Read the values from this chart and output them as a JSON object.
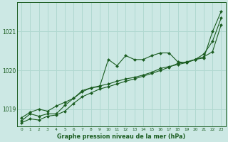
{
  "title": "Graphe pression niveau de la mer (hPa)",
  "bg_color": "#cce8e4",
  "grid_color": "#b0d8d0",
  "line_color": "#1a5c20",
  "xlim_min": -0.5,
  "xlim_max": 23.5,
  "ylim_min": 1018.55,
  "ylim_max": 1021.75,
  "yticks": [
    1019,
    1020,
    1021
  ],
  "xticks": [
    0,
    1,
    2,
    3,
    4,
    5,
    6,
    7,
    8,
    9,
    10,
    11,
    12,
    13,
    14,
    15,
    16,
    17,
    18,
    19,
    20,
    21,
    22,
    23
  ],
  "series1": [
    1018.7,
    1018.88,
    1018.82,
    1018.88,
    1018.88,
    1019.1,
    1019.28,
    1019.45,
    1019.55,
    1019.6,
    1019.65,
    1019.72,
    1019.78,
    1019.82,
    1019.88,
    1019.95,
    1020.05,
    1020.1,
    1020.15,
    1020.2,
    1020.28,
    1020.42,
    1020.75,
    1021.35
  ],
  "series2": [
    1018.78,
    1018.92,
    1019.0,
    1018.95,
    1019.08,
    1019.18,
    1019.28,
    1019.48,
    1019.55,
    1019.58,
    1020.28,
    1020.12,
    1020.38,
    1020.28,
    1020.28,
    1020.38,
    1020.45,
    1020.45,
    1020.22,
    1020.2,
    1020.28,
    1020.32,
    1021.0,
    1021.52
  ],
  "series3": [
    1018.65,
    1018.75,
    1018.72,
    1018.82,
    1018.85,
    1018.95,
    1019.15,
    1019.32,
    1019.42,
    1019.52,
    1019.58,
    1019.65,
    1019.72,
    1019.78,
    1019.85,
    1019.92,
    1020.0,
    1020.08,
    1020.18,
    1020.22,
    1020.28,
    1020.35,
    1020.48,
    1021.18
  ],
  "xlabel_fontsize": 5.8,
  "ytick_fontsize": 5.5,
  "xtick_fontsize": 4.2
}
